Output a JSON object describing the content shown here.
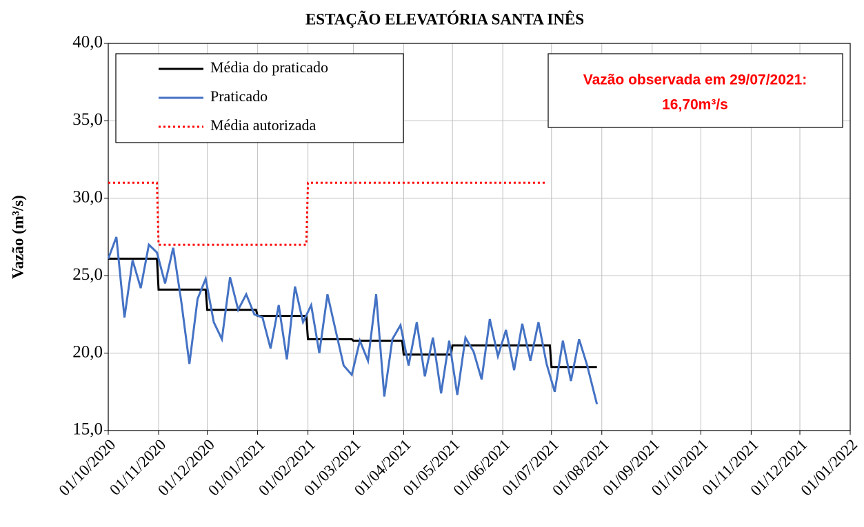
{
  "chart_data": {
    "type": "line",
    "title": "ESTAÇÃO ELEVATÓRIA SANTA INÊS",
    "y_label": "Vazão (m³/s)",
    "annotation": [
      "Vazão observada em 29/07/2021:",
      "16,70m³/s"
    ],
    "legend": "upper left",
    "grid": true,
    "xlim": [
      "01/10/2020",
      "01/01/2022"
    ],
    "xticks": [
      "01/10/2020",
      "01/11/2020",
      "01/12/2020",
      "01/01/2021",
      "01/02/2021",
      "01/03/2021",
      "01/04/2021",
      "01/05/2021",
      "01/06/2021",
      "01/07/2021",
      "01/08/2021",
      "01/09/2021",
      "01/10/2021",
      "01/11/2021",
      "01/12/2021",
      "01/01/2022"
    ],
    "ylim": [
      15,
      40
    ],
    "yticks": [
      {
        "value": 15,
        "label": "15,0"
      },
      {
        "value": 20,
        "label": "20,0"
      },
      {
        "value": 25,
        "label": "25,0"
      },
      {
        "value": 30,
        "label": "30,0"
      },
      {
        "value": 35,
        "label": "35,0"
      },
      {
        "value": 40,
        "label": "40,0"
      }
    ],
    "series": [
      {
        "name": "Média do praticado",
        "color": "#000000",
        "style": "solid",
        "x": [
          "01/10/2020",
          "31/10/2020",
          "01/11/2020",
          "30/11/2020",
          "01/12/2020",
          "31/12/2020",
          "01/01/2021",
          "31/01/2021",
          "01/02/2021",
          "28/02/2021",
          "01/03/2021",
          "31/03/2021",
          "01/04/2021",
          "30/04/2021",
          "01/05/2021",
          "31/05/2021",
          "01/06/2021",
          "30/06/2021",
          "01/07/2021",
          "29/07/2021"
        ],
        "values": [
          26.1,
          26.1,
          24.1,
          24.1,
          22.8,
          22.8,
          22.4,
          22.4,
          20.9,
          20.9,
          20.8,
          20.8,
          19.9,
          19.9,
          20.5,
          20.5,
          20.5,
          20.5,
          19.1,
          19.1
        ]
      },
      {
        "name": "Praticado",
        "color": "#4472c4",
        "style": "solid",
        "x": [
          "01/10/2020",
          "06/10/2020",
          "11/10/2020",
          "16/10/2020",
          "21/10/2020",
          "26/10/2020",
          "31/10/2020",
          "05/11/2020",
          "10/11/2020",
          "15/11/2020",
          "20/11/2020",
          "25/11/2020",
          "30/11/2020",
          "05/12/2020",
          "10/12/2020",
          "15/12/2020",
          "20/12/2020",
          "25/12/2020",
          "30/12/2020",
          "04/01/2021",
          "09/01/2021",
          "14/01/2021",
          "19/01/2021",
          "24/01/2021",
          "29/01/2021",
          "03/02/2021",
          "08/02/2021",
          "13/02/2021",
          "18/02/2021",
          "23/02/2021",
          "28/02/2021",
          "05/03/2021",
          "10/03/2021",
          "15/03/2021",
          "20/03/2021",
          "25/03/2021",
          "30/03/2021",
          "04/04/2021",
          "09/04/2021",
          "14/04/2021",
          "19/04/2021",
          "24/04/2021",
          "29/04/2021",
          "04/05/2021",
          "09/05/2021",
          "14/05/2021",
          "19/05/2021",
          "24/05/2021",
          "29/05/2021",
          "03/06/2021",
          "08/06/2021",
          "13/06/2021",
          "18/06/2021",
          "23/06/2021",
          "28/06/2021",
          "03/07/2021",
          "08/07/2021",
          "13/07/2021",
          "18/07/2021",
          "23/07/2021",
          "29/07/2021"
        ],
        "values": [
          26.1,
          27.5,
          22.3,
          26.0,
          24.2,
          27.0,
          26.5,
          24.5,
          26.8,
          23.3,
          19.3,
          23.5,
          24.8,
          22.0,
          20.9,
          24.9,
          22.8,
          23.8,
          22.5,
          22.3,
          20.3,
          23.1,
          19.6,
          24.3,
          22.0,
          23.1,
          20.0,
          23.8,
          21.5,
          19.2,
          18.6,
          20.8,
          19.5,
          23.8,
          17.2,
          20.9,
          21.8,
          19.2,
          22.0,
          18.5,
          21.0,
          17.4,
          20.8,
          17.3,
          21.0,
          20.1,
          18.3,
          22.2,
          19.8,
          21.5,
          18.9,
          21.9,
          19.5,
          22.0,
          19.3,
          17.5,
          20.8,
          18.2,
          20.9,
          19.2,
          16.7
        ]
      },
      {
        "name": "Média autorizada",
        "color": "#ff0000",
        "style": "dotted",
        "x": [
          "01/10/2020",
          "31/10/2020",
          "01/11/2020",
          "31/01/2021",
          "01/02/2021",
          "28/06/2021"
        ],
        "values": [
          31.0,
          31.0,
          27.0,
          27.0,
          31.0,
          31.0
        ]
      }
    ]
  }
}
